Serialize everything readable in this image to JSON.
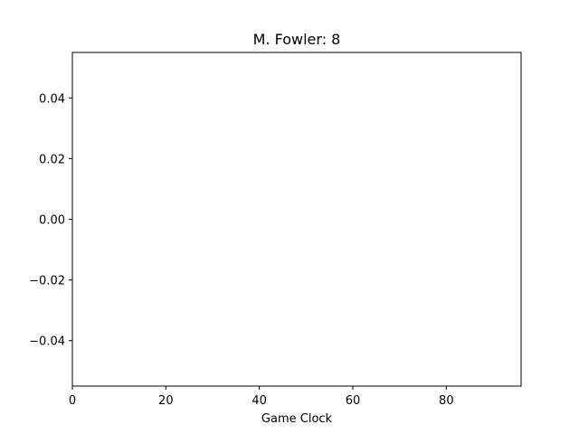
{
  "chart_data": {
    "type": "line",
    "title": "M. Fowler: 8",
    "xlabel": "Game Clock",
    "ylabel": "",
    "xlim": [
      0,
      96
    ],
    "ylim": [
      -0.055,
      0.055
    ],
    "xticks": [
      0,
      20,
      40,
      60,
      80
    ],
    "xtick_labels": [
      "0",
      "20",
      "40",
      "60",
      "80"
    ],
    "yticks": [
      0.04,
      0.02,
      0.0,
      -0.02,
      -0.04
    ],
    "ytick_labels": [
      "0.04",
      "0.02",
      "0.00",
      "−0.02",
      "−0.04"
    ],
    "grid": false,
    "series": []
  }
}
